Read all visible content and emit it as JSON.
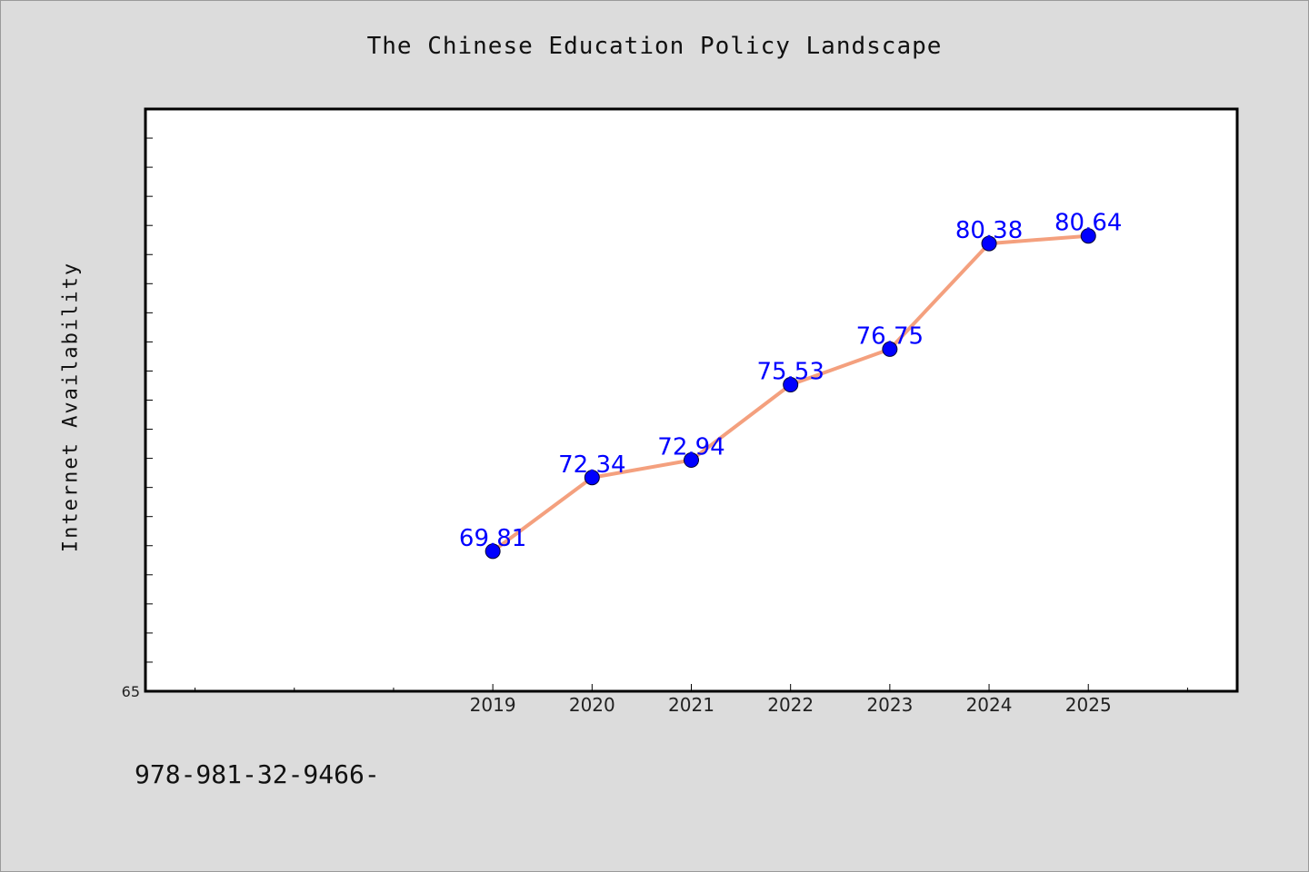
{
  "chart_data": {
    "type": "line",
    "title": "The Chinese Education Policy Landscape",
    "ylabel": "Internet Availability",
    "xlabel": "",
    "x": [
      2019,
      2020,
      2021,
      2022,
      2023,
      2024,
      2025
    ],
    "series": [
      {
        "values": [
          69.81,
          72.34,
          72.94,
          75.53,
          76.75,
          80.38,
          80.64
        ]
      }
    ],
    "data_labels": [
      "69.81",
      "72.34",
      "72.94",
      "75.53",
      "76.75",
      "80.38",
      "80.64"
    ],
    "xlim": [
      2015.5,
      2026.5
    ],
    "ylim": [
      65,
      85
    ],
    "ytick_labels": [
      "65"
    ],
    "grid": false,
    "legend": "none",
    "colors": {
      "line": "#f4a07e",
      "marker": "#0000ff",
      "data_label": "#0000ff",
      "background": "#dcdcdc",
      "plot_background": "#ffffff"
    }
  },
  "footer_text": "978-981-32-9466-"
}
